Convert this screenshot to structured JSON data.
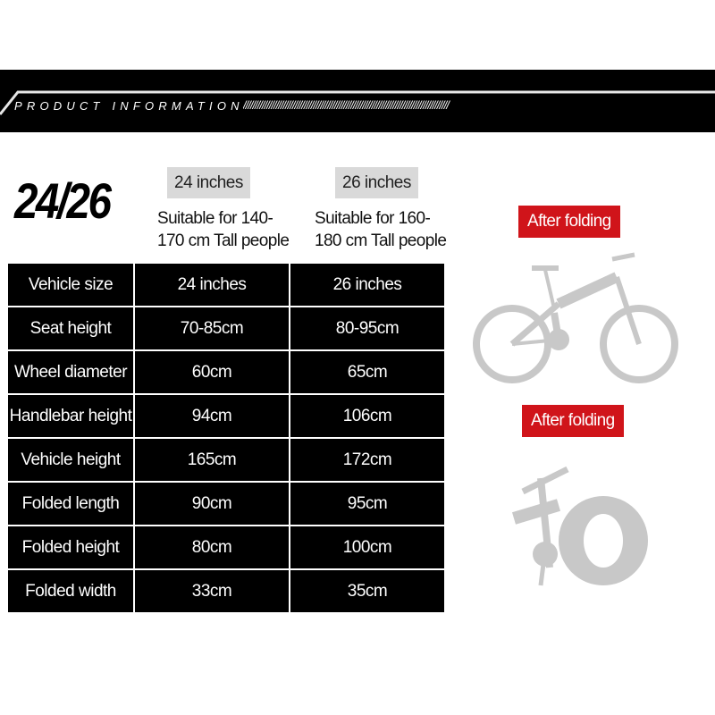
{
  "banner": {
    "title": "PRODUCT INFORMATION",
    "hatch": "////////////////////////////////////////////////////////////////////////////////////////"
  },
  "headline": "24/26",
  "sizes": [
    {
      "label": "24 inches",
      "suitable_line1": "Suitable for 140-",
      "suitable_line2": "170 cm Tall people"
    },
    {
      "label": "26 inches",
      "suitable_line1": "Suitable for 160-",
      "suitable_line2": "180 cm Tall people"
    }
  ],
  "table": {
    "rows": [
      [
        "Vehicle size",
        "24 inches",
        "26 inches"
      ],
      [
        "Seat height",
        "70-85cm",
        "80-95cm"
      ],
      [
        "Wheel diameter",
        "60cm",
        "65cm"
      ],
      [
        "Handlebar height",
        "94cm",
        "106cm"
      ],
      [
        "Vehicle height",
        "165cm",
        "172cm"
      ],
      [
        "Folded length",
        "90cm",
        "95cm"
      ],
      [
        "Folded height",
        "80cm",
        "100cm"
      ],
      [
        "Folded width",
        "33cm",
        "35cm"
      ]
    ]
  },
  "images": [
    {
      "label": "After folding"
    },
    {
      "label": "After folding"
    }
  ],
  "colors": {
    "banner": "#000000",
    "tag": "#d9d9d9",
    "label_red": "#d0141a",
    "bike": "#c8c8c8"
  }
}
